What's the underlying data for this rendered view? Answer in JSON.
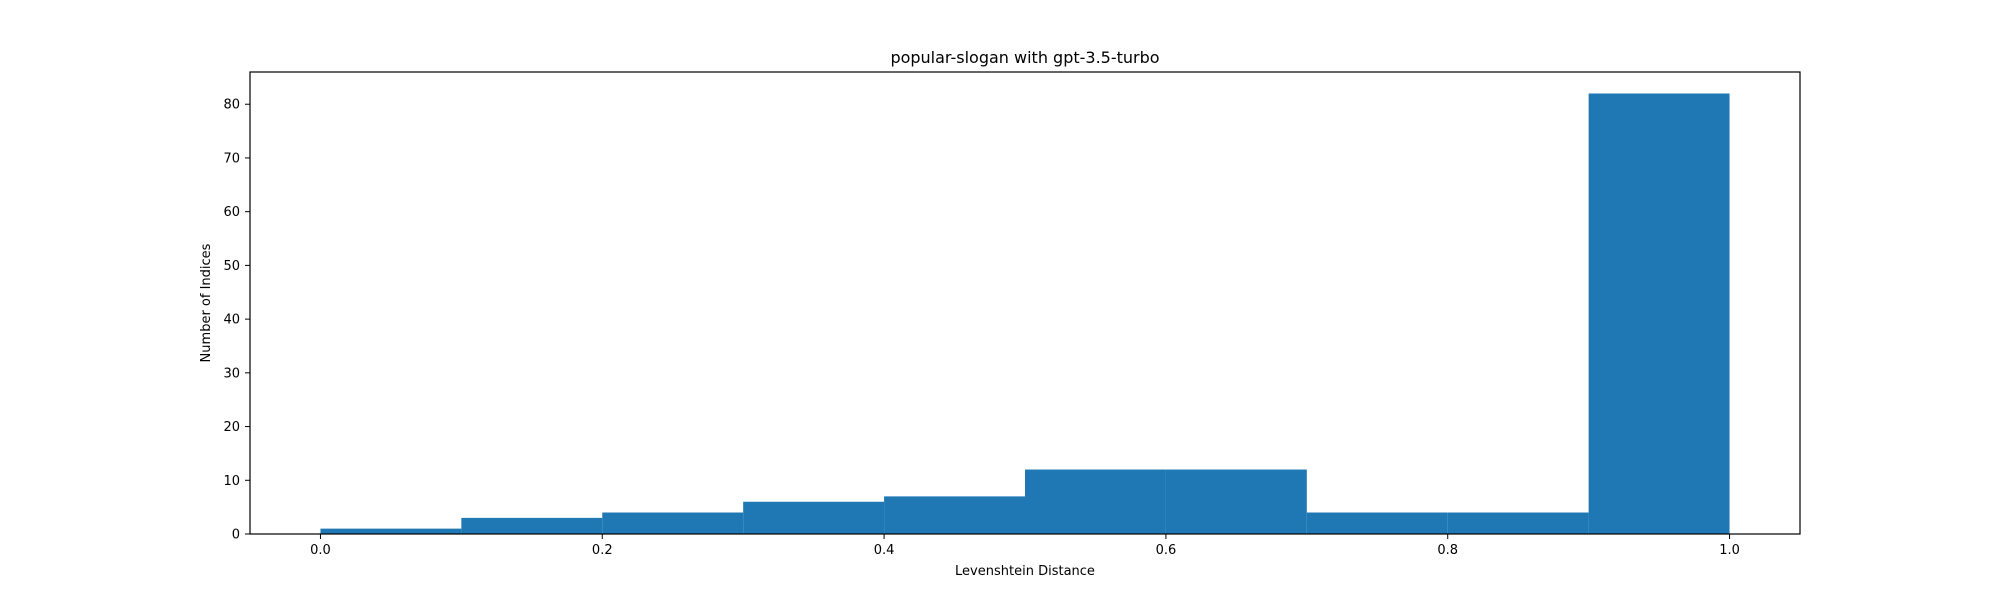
{
  "chart_data": {
    "type": "bar",
    "title": "popular-slogan with gpt-3.5-turbo",
    "xlabel": "Levenshtein Distance",
    "ylabel": "Number of Indices",
    "xlim": [
      -0.05,
      1.05
    ],
    "ylim": [
      0,
      86
    ],
    "xticks": [
      "0.0",
      "0.2",
      "0.4",
      "0.6",
      "0.8",
      "1.0"
    ],
    "yticks": [
      "0",
      "10",
      "20",
      "30",
      "40",
      "50",
      "60",
      "70",
      "80"
    ],
    "bins": [
      {
        "x0": 0.0,
        "x1": 0.1,
        "value": 1
      },
      {
        "x0": 0.1,
        "x1": 0.2,
        "value": 3
      },
      {
        "x0": 0.2,
        "x1": 0.3,
        "value": 4
      },
      {
        "x0": 0.3,
        "x1": 0.4,
        "value": 6
      },
      {
        "x0": 0.4,
        "x1": 0.5,
        "value": 7
      },
      {
        "x0": 0.5,
        "x1": 0.6,
        "value": 12
      },
      {
        "x0": 0.6,
        "x1": 0.7,
        "value": 12
      },
      {
        "x0": 0.7,
        "x1": 0.8,
        "value": 4
      },
      {
        "x0": 0.8,
        "x1": 0.9,
        "value": 4
      },
      {
        "x0": 0.9,
        "x1": 1.0,
        "value": 82
      }
    ],
    "bar_color": "#1f77b4",
    "grid": false,
    "legend": "none"
  }
}
